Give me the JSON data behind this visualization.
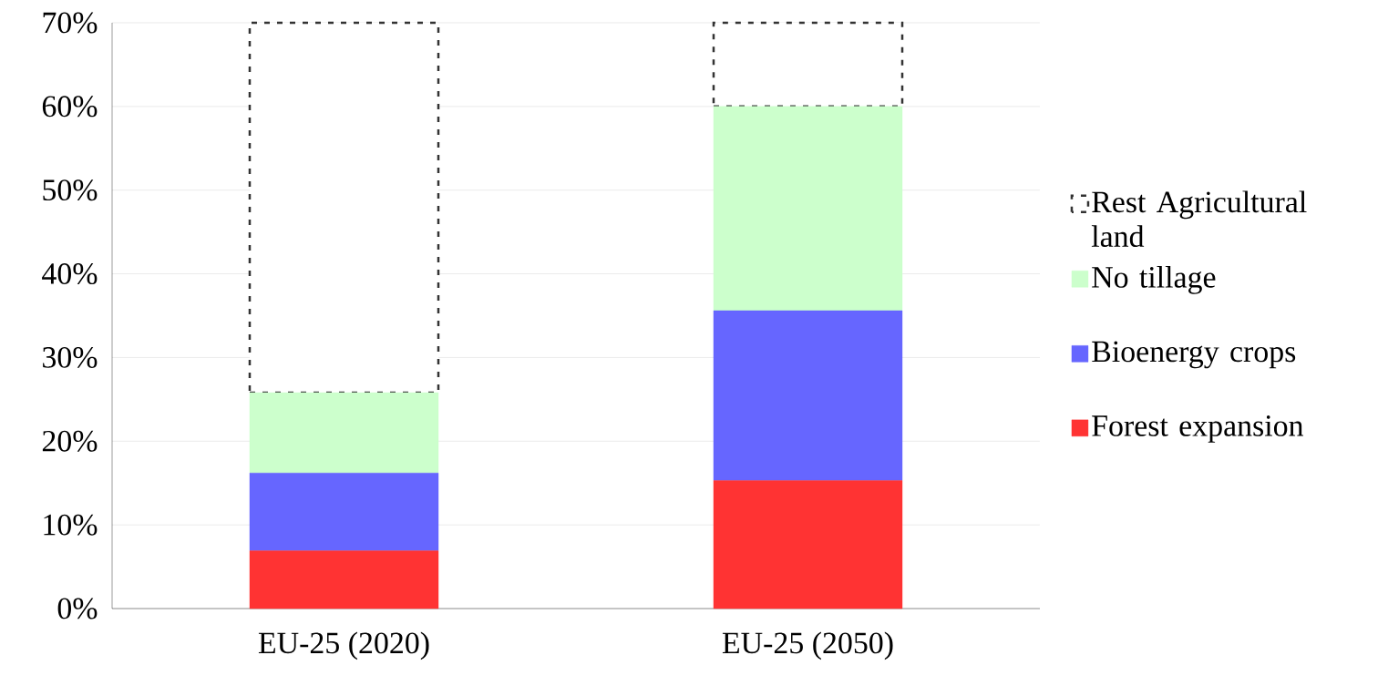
{
  "chart_data": {
    "type": "bar",
    "stacked": true,
    "categories": [
      "EU-25 (2020)",
      "EU-25 (2050)"
    ],
    "series": [
      {
        "name": "Forest expansion",
        "color": "#ff3333",
        "values": [
          6.9,
          15.3
        ]
      },
      {
        "name": "Bioenergy crops",
        "color": "#6666ff",
        "values": [
          9.3,
          20.3
        ]
      },
      {
        "name": "No tillage",
        "color": "#ccffcc",
        "values": [
          9.6,
          24.4
        ]
      },
      {
        "name": "Rest Agricultural land",
        "color": "#ffffff",
        "line_style": "dashed",
        "values": [
          44.2,
          10.0
        ]
      }
    ],
    "ylim": [
      0,
      70
    ],
    "yticks": [
      {
        "value": 0,
        "label": "0%"
      },
      {
        "value": 10,
        "label": "10%"
      },
      {
        "value": 20,
        "label": "20%"
      },
      {
        "value": 30,
        "label": "30%"
      },
      {
        "value": 40,
        "label": "40%"
      },
      {
        "value": 50,
        "label": "50%"
      },
      {
        "value": 60,
        "label": "60%"
      },
      {
        "value": 70,
        "label": "70%"
      }
    ],
    "grid": "y",
    "legend": "right"
  }
}
